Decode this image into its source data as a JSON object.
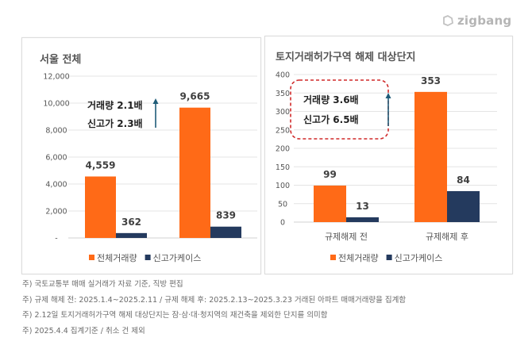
{
  "brand": {
    "logo_text": "zigbang",
    "icon": "zigbang-logo-icon"
  },
  "colors": {
    "total": "#FF6A17",
    "record_high": "#243A5E",
    "arrow": "#1F5C78",
    "annotation_box": "#D02A2A"
  },
  "chart_data": [
    {
      "type": "bar",
      "title": "서울 전체",
      "categories": [
        "",
        ""
      ],
      "series": [
        {
          "name": "전체거래량",
          "values": [
            4559,
            9665
          ],
          "labels": [
            "4,559",
            "9,665"
          ]
        },
        {
          "name": "신고가케이스",
          "values": [
            362,
            839
          ],
          "labels": [
            "362",
            "839"
          ]
        }
      ],
      "ylim": [
        0,
        12000
      ],
      "yticks": [
        0,
        2000,
        4000,
        6000,
        8000,
        10000,
        12000
      ],
      "ytick_labels": [
        "-",
        "2,000",
        "4,000",
        "6,000",
        "8,000",
        "10,000",
        "12,000"
      ],
      "grid": true,
      "legend": "bottom",
      "annotation": {
        "lines": [
          "거래량 2.1배",
          "신고가 2.3배"
        ],
        "arrow": "up",
        "boxed": false
      }
    },
    {
      "type": "bar",
      "title": "토지거래허가구역 해제 대상단지",
      "categories": [
        "규제해제 전",
        "규제해제 후"
      ],
      "series": [
        {
          "name": "전체거래량",
          "values": [
            99,
            353
          ],
          "labels": [
            "99",
            "353"
          ]
        },
        {
          "name": "신고가케이스",
          "values": [
            13,
            84
          ],
          "labels": [
            "13",
            "84"
          ]
        }
      ],
      "ylim": [
        0,
        400
      ],
      "yticks": [
        0,
        50,
        100,
        150,
        200,
        250,
        300,
        350,
        400
      ],
      "ytick_labels": [
        "0",
        "50",
        "100",
        "150",
        "200",
        "250",
        "300",
        "350",
        "400"
      ],
      "grid": true,
      "legend": "bottom",
      "annotation": {
        "lines": [
          "거래량 3.6배",
          "신고가 6.5배"
        ],
        "arrow": "up",
        "boxed": true
      }
    }
  ],
  "notes": [
    "주) 국토교통부 매매 실거래가 자료 기준, 직방 편집",
    "주) 규제 해제 전: 2025.1.4~2025.2.11 / 규제 해제 후: 2025.2.13~2025.3.23 거래된 아파트 매매거래량을 집계함",
    "주) 2.12일 토지거래허가구역 해제 대상단지는  잠·삼·대·청지역의 재건축을 제외한 단지를 의미함",
    "주) 2025.4.4 집계기준 / 취소 건 제외"
  ]
}
